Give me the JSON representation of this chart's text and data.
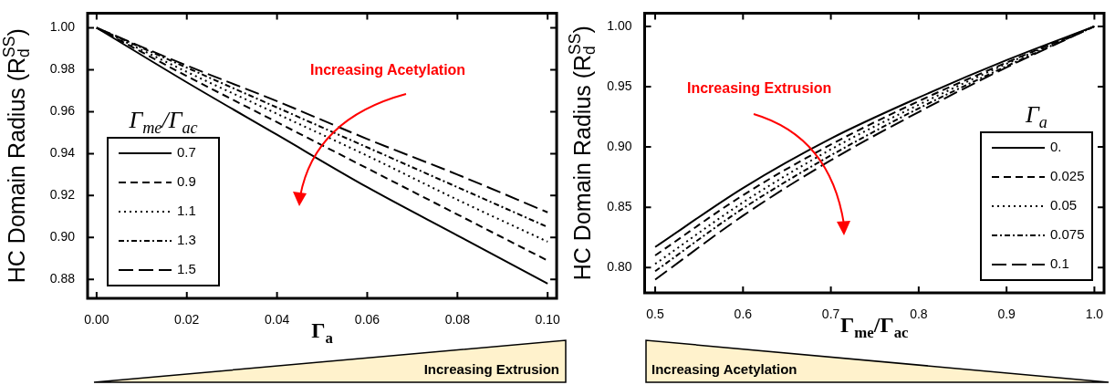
{
  "chart_data": [
    {
      "type": "line",
      "xlabel": "Γ$_{a}$",
      "ylabel": "HC Domain Radius (R$_{d}$$^{SS}$)",
      "legend_title": "Γ$_{me}$/Γ$_{ac}$",
      "legend": "left",
      "marker": "none",
      "x": [
        0,
        0.02,
        0.04,
        0.06,
        0.08,
        0.1
      ],
      "xlim": [
        -0.002,
        0.102
      ],
      "xticks": [
        {
          "value": 0,
          "label": "0.00"
        },
        0.02,
        0.04,
        0.06,
        0.08,
        {
          "value": 0.1,
          "label": "0.10"
        }
      ],
      "ylim": [
        0.871,
        1.007
      ],
      "yticks": [
        0.88,
        {
          "value": 0.9,
          "label": "0.90"
        },
        0.92,
        0.94,
        0.96,
        0.98,
        {
          "value": 1,
          "label": "1.00"
        }
      ],
      "series": [
        {
          "name": "0.7",
          "color": "#000000",
          "line_style": "solid",
          "values": [
            1,
            0.974,
            0.949,
            0.924,
            0.901,
            0.878
          ]
        },
        {
          "name": "0.9",
          "color": "#000000",
          "line_style": "dashed",
          "values": [
            1,
            0.977,
            0.955,
            0.933,
            0.911,
            0.889
          ]
        },
        {
          "name": "1.1",
          "color": "#000000",
          "line_style": "dotted",
          "values": [
            1,
            0.979,
            0.959,
            0.939,
            0.918,
            0.898
          ]
        },
        {
          "name": "1.3",
          "color": "#000000",
          "line_style": "dashdot",
          "values": [
            1,
            0.981,
            0.962,
            0.943,
            0.924,
            0.905
          ]
        },
        {
          "name": "1.5",
          "color": "#000000",
          "line_style": "longdash",
          "values": [
            1,
            0.982,
            0.965,
            0.947,
            0.93,
            0.912
          ]
        }
      ],
      "annotations": [
        "Increasing Acetylation",
        "Increasing Extrusion"
      ]
    },
    {
      "type": "line",
      "xlabel": "Γ$_{me}$/Γ$_{ac}$",
      "ylabel": "HC Domain Radius (R$_{d}$$^{SS}$)",
      "legend_title": "Γ$_{a}$",
      "legend": "bottom right",
      "marker": "none",
      "x": [
        0.5,
        0.6,
        0.7,
        0.8,
        0.9,
        1.0
      ],
      "xlim": [
        0.488,
        1.011
      ],
      "xticks": [
        0.5,
        0.6,
        0.7,
        0.8,
        0.9,
        {
          "value": 1,
          "label": "1.0"
        }
      ],
      "ylim": [
        0.779,
        1.011
      ],
      "yticks": [
        {
          "value": 0.8,
          "label": "0.80"
        },
        0.85,
        {
          "value": 0.9,
          "label": "0.90"
        },
        0.95,
        {
          "value": 1,
          "label": "1.00"
        }
      ],
      "series": [
        {
          "name": "0.",
          "color": "#000000",
          "line_style": "solid",
          "values": [
            0.817,
            0.866,
            0.907,
            0.941,
            0.972,
            1
          ]
        },
        {
          "name": "0.025",
          "color": "#000000",
          "line_style": "dashed",
          "values": [
            0.81,
            0.86,
            0.902,
            0.938,
            0.97,
            1
          ]
        },
        {
          "name": "0.05",
          "color": "#000000",
          "line_style": "dotted",
          "values": [
            0.803,
            0.854,
            0.898,
            0.935,
            0.969,
            1
          ]
        },
        {
          "name": "0.075",
          "color": "#000000",
          "line_style": "dashdot",
          "values": [
            0.797,
            0.849,
            0.893,
            0.932,
            0.967,
            1
          ]
        },
        {
          "name": "0.1",
          "color": "#000000",
          "line_style": "longdash",
          "values": [
            0.79,
            0.843,
            0.889,
            0.929,
            0.966,
            1
          ]
        }
      ],
      "annotations": [
        "Increasing Extrusion",
        "Increasing Acetylation"
      ]
    }
  ]
}
